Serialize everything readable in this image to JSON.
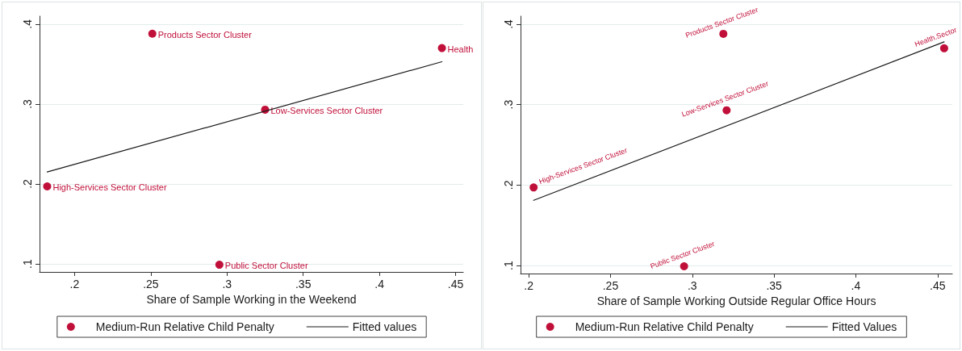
{
  "chart_data": [
    {
      "type": "scatter",
      "xlabel": "Share of Sample Working in the Weekend",
      "xlim": [
        0.177,
        0.455
      ],
      "ylim": [
        0.09,
        0.41
      ],
      "xticks": [
        {
          "value": 0.2,
          "label": ".2"
        },
        {
          "value": 0.25,
          "label": ".25"
        },
        {
          "value": 0.3,
          "label": ".3"
        },
        {
          "value": 0.35,
          "label": ".35"
        },
        {
          "value": 0.4,
          "label": ".4"
        },
        {
          "value": 0.45,
          "label": ".45"
        }
      ],
      "yticks": [
        {
          "value": 0.1,
          "label": ".1"
        },
        {
          "value": 0.2,
          "label": ".2"
        },
        {
          "value": 0.3,
          "label": ".3"
        },
        {
          "value": 0.4,
          "label": ".4"
        }
      ],
      "grid": "y",
      "legend": "bottom",
      "marker": "circle",
      "series": [
        {
          "name": "Medium-Run Relative Child Penalty",
          "type": "scatter",
          "color": "#c0103a",
          "x": [
            0.251,
            0.441,
            0.325,
            0.182,
            0.295
          ],
          "values": [
            0.388,
            0.37,
            0.293,
            0.197,
            0.099
          ]
        },
        {
          "name": "Fitted values",
          "type": "line",
          "marker": "none",
          "color": "#1a1a1a",
          "x": [
            0.182,
            0.441
          ],
          "values": [
            0.215,
            0.353
          ]
        }
      ],
      "annotations": [
        {
          "text": "Products Sector Cluster",
          "x": 0.251,
          "y": 0.388
        },
        {
          "text": "Health",
          "x": 0.441,
          "y": 0.37
        },
        {
          "text": "Low-Services Sector Cluster",
          "x": 0.325,
          "y": 0.293
        },
        {
          "text": "High-Services Sector Cluster",
          "x": 0.182,
          "y": 0.197
        },
        {
          "text": "Public Sector Cluster",
          "x": 0.295,
          "y": 0.099
        }
      ]
    },
    {
      "type": "scatter",
      "xlabel": "Share of Sample Working Outside Regular Office Hours",
      "xlim": [
        0.195,
        0.459
      ],
      "ylim": [
        0.09,
        0.41
      ],
      "xticks": [
        {
          "value": 0.2,
          "label": ".2"
        },
        {
          "value": 0.25,
          "label": ".25"
        },
        {
          "value": 0.3,
          "label": ".3"
        },
        {
          "value": 0.35,
          "label": ".35"
        },
        {
          "value": 0.4,
          "label": ".4"
        },
        {
          "value": 0.45,
          "label": ".45"
        }
      ],
      "yticks": [
        {
          "value": 0.1,
          "label": ".1"
        },
        {
          "value": 0.2,
          "label": ".2"
        },
        {
          "value": 0.3,
          "label": ".3"
        },
        {
          "value": 0.4,
          "label": ".4"
        }
      ],
      "grid": "y",
      "legend": "bottom",
      "marker": "circle",
      "series": [
        {
          "name": "Medium-Run Relative Child Penalty",
          "type": "scatter",
          "color": "#c0103a",
          "x": [
            0.319,
            0.454,
            0.321,
            0.203,
            0.295
          ],
          "values": [
            0.388,
            0.37,
            0.293,
            0.197,
            0.099
          ]
        },
        {
          "name": "Fitted Values",
          "type": "line",
          "marker": "none",
          "color": "#1a1a1a",
          "x": [
            0.203,
            0.454
          ],
          "values": [
            0.181,
            0.378
          ]
        }
      ],
      "annotations": [
        {
          "text": "Products Sector Cluster",
          "x": 0.319,
          "y": 0.388
        },
        {
          "text": "Health.Sector",
          "x": 0.454,
          "y": 0.37
        },
        {
          "text": "Low-Services Sector Cluster",
          "x": 0.321,
          "y": 0.293
        },
        {
          "text": "High-Services Sector Cluster",
          "x": 0.203,
          "y": 0.197
        },
        {
          "text": "Public Sector Cluster",
          "x": 0.295,
          "y": 0.099
        }
      ]
    }
  ]
}
